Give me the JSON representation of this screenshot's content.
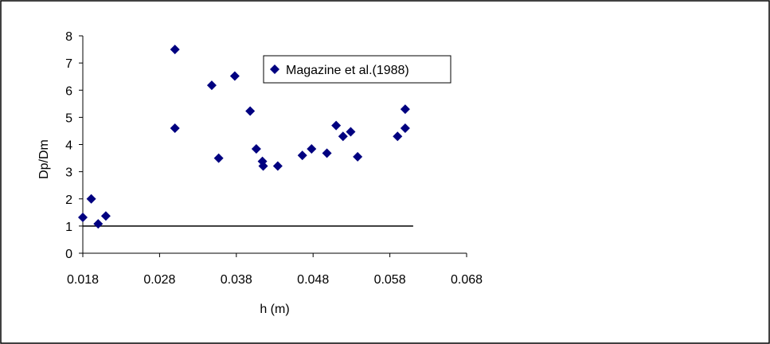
{
  "chart_data": {
    "type": "scatter",
    "title": "",
    "xlabel": "h (m)",
    "ylabel": "Dp/Dm",
    "xlim": [
      0.018,
      0.068
    ],
    "ylim": [
      0,
      8
    ],
    "x_ticks": [
      0.018,
      0.028,
      0.038,
      0.048,
      0.058,
      0.068
    ],
    "x_tick_labels": [
      "0.018",
      "0.028",
      "0.038",
      "0.048",
      "0.058",
      "0.068"
    ],
    "y_ticks": [
      0,
      1,
      2,
      3,
      4,
      5,
      6,
      7,
      8
    ],
    "y_tick_labels": [
      "0",
      "1",
      "2",
      "3",
      "4",
      "5",
      "6",
      "7",
      "8"
    ],
    "grid": false,
    "legend_position": "top-right",
    "series": [
      {
        "name": "Magazine et al.(1988)",
        "color": "#000080",
        "marker": "diamond",
        "points": [
          {
            "x": 0.018,
            "y": 1.32
          },
          {
            "x": 0.0191,
            "y": 2.0
          },
          {
            "x": 0.02,
            "y": 1.08
          },
          {
            "x": 0.021,
            "y": 1.37
          },
          {
            "x": 0.03,
            "y": 7.5
          },
          {
            "x": 0.03,
            "y": 4.6
          },
          {
            "x": 0.0348,
            "y": 6.18
          },
          {
            "x": 0.0357,
            "y": 3.5
          },
          {
            "x": 0.0378,
            "y": 6.52
          },
          {
            "x": 0.0398,
            "y": 5.23
          },
          {
            "x": 0.0406,
            "y": 3.84
          },
          {
            "x": 0.0414,
            "y": 3.38
          },
          {
            "x": 0.0415,
            "y": 3.21
          },
          {
            "x": 0.0434,
            "y": 3.21
          },
          {
            "x": 0.0466,
            "y": 3.6
          },
          {
            "x": 0.0478,
            "y": 3.84
          },
          {
            "x": 0.0498,
            "y": 3.68
          },
          {
            "x": 0.051,
            "y": 4.7
          },
          {
            "x": 0.0519,
            "y": 4.3
          },
          {
            "x": 0.0529,
            "y": 4.47
          },
          {
            "x": 0.0538,
            "y": 3.55
          },
          {
            "x": 0.059,
            "y": 4.3
          },
          {
            "x": 0.06,
            "y": 4.6
          },
          {
            "x": 0.06,
            "y": 5.3
          }
        ]
      }
    ],
    "reference_line": {
      "y": 1,
      "x_start": 0.018,
      "x_end": 0.06,
      "color": "#000000"
    }
  }
}
